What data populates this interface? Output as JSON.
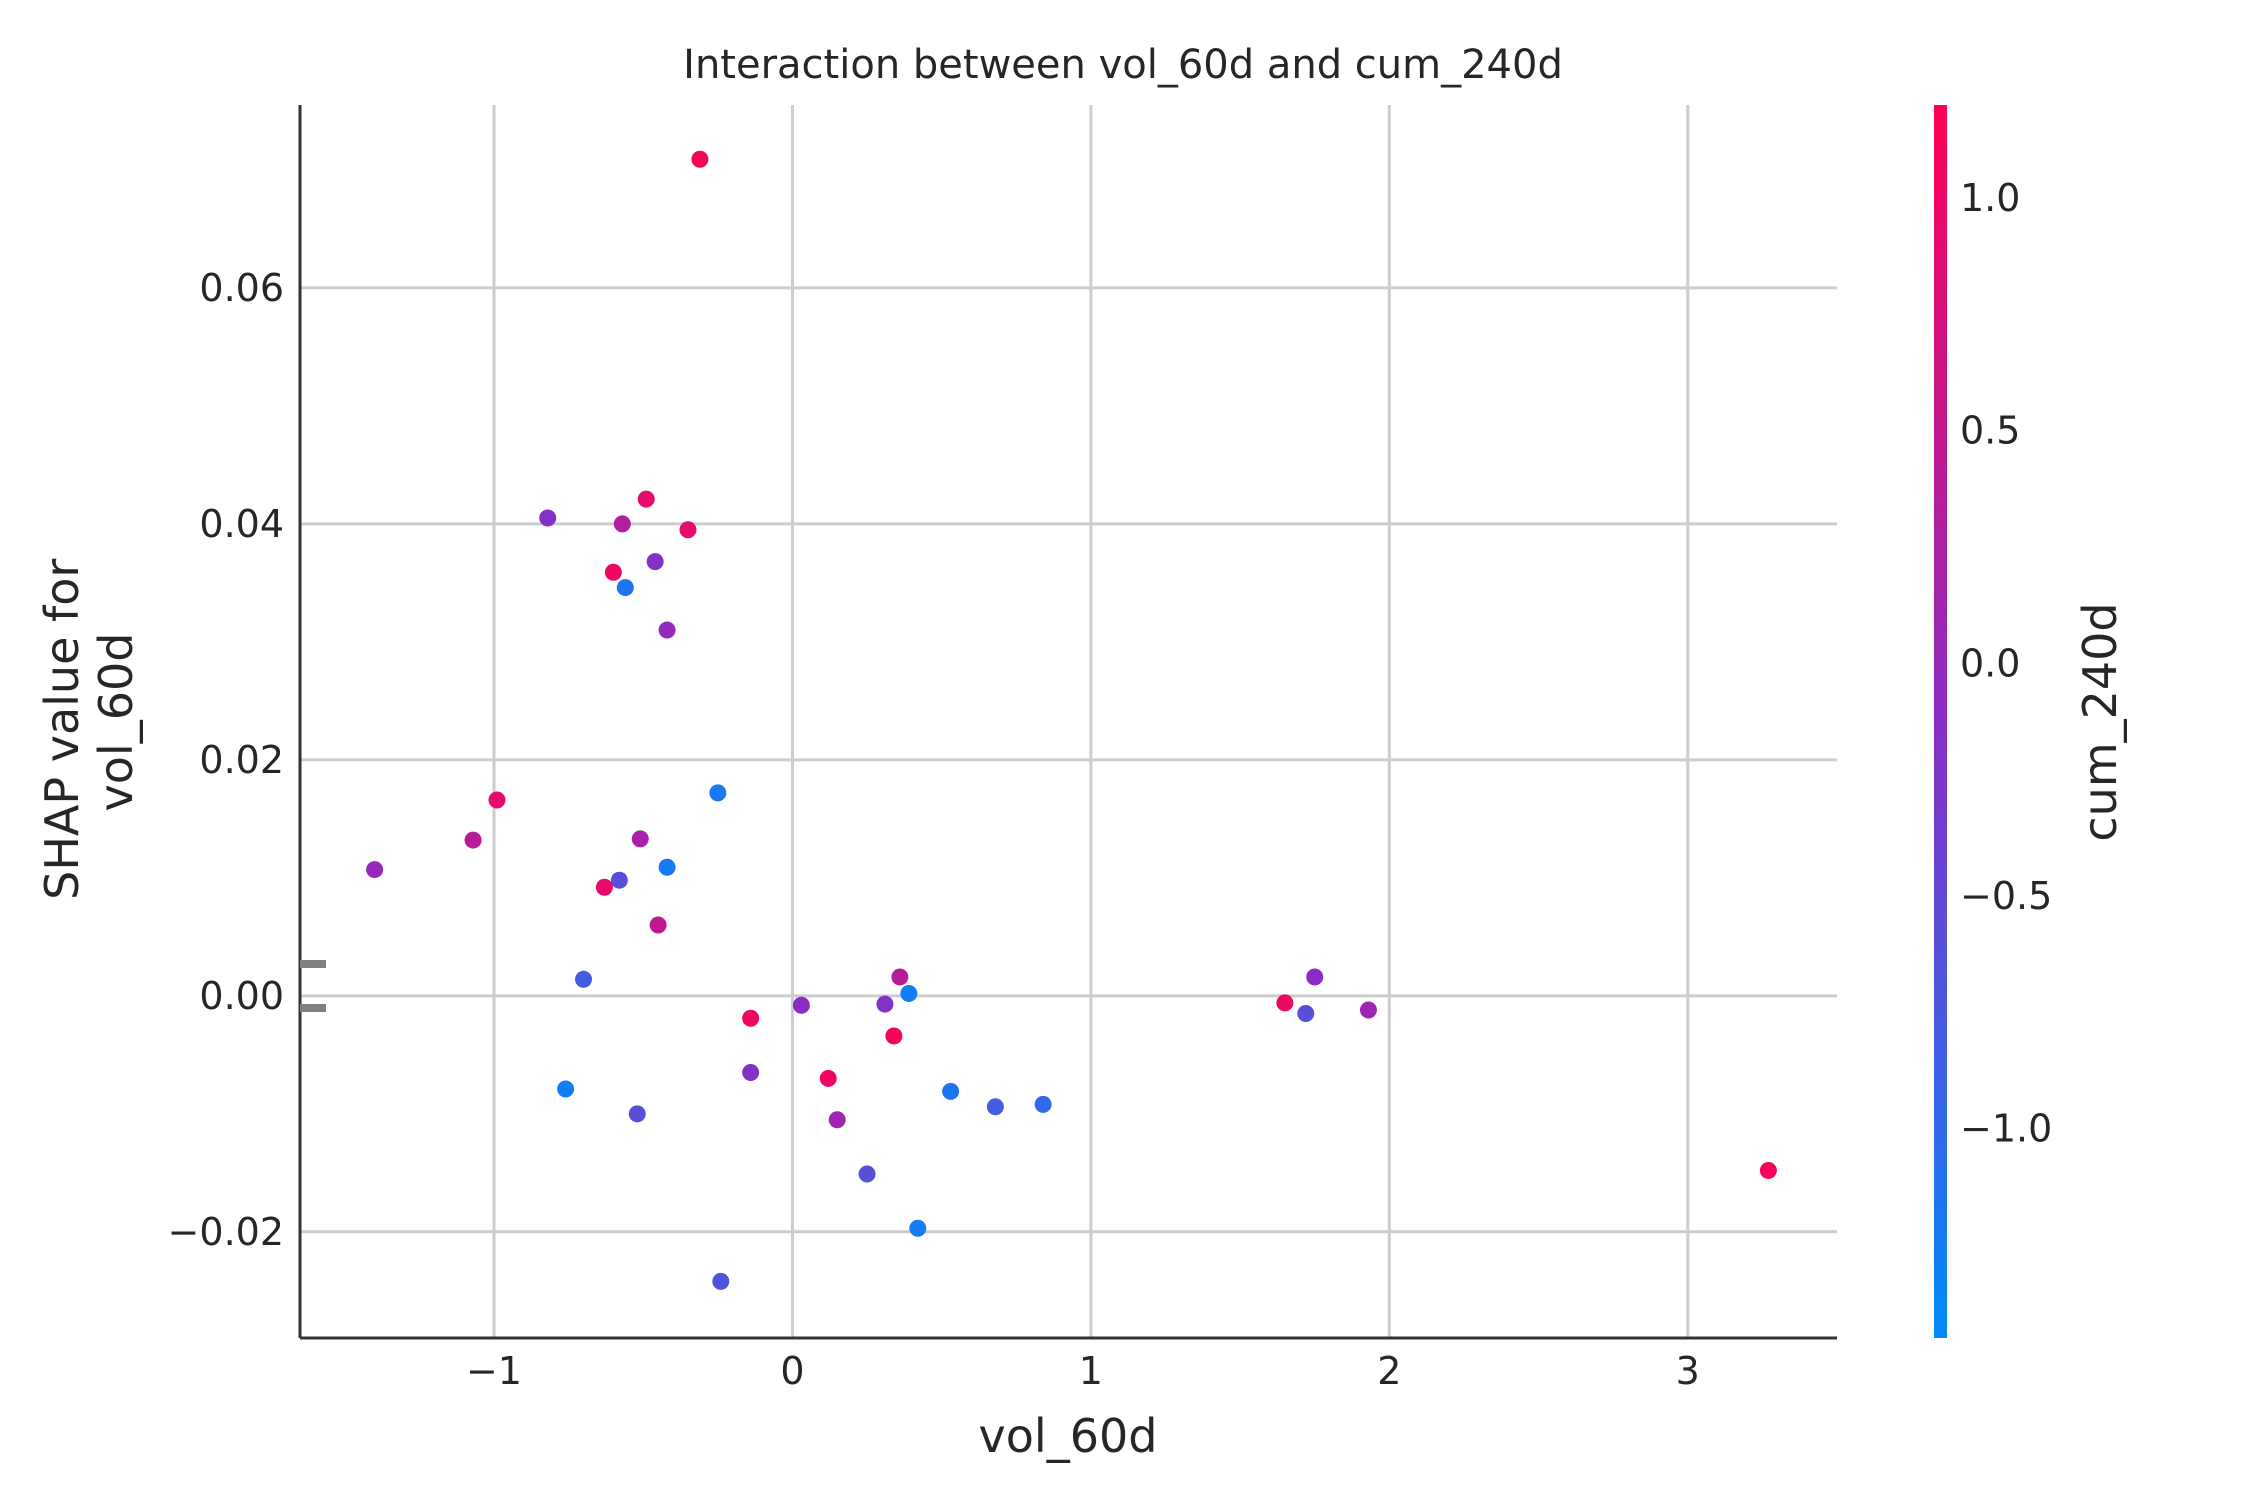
{
  "chart_data": {
    "type": "scatter",
    "title": "Interaction between vol_60d and cum_240d",
    "xlabel": "vol_60d",
    "ylabel_lines": [
      "SHAP value for",
      "vol_60d"
    ],
    "colorbar_label": "cum_240d",
    "xlim": [
      -1.65,
      3.5
    ],
    "ylim": [
      -0.029,
      0.0755
    ],
    "xticks": [
      -1,
      0,
      1,
      2,
      3
    ],
    "xtick_labels": [
      "−1",
      "0",
      "1",
      "2",
      "3"
    ],
    "yticks": [
      -0.02,
      0.0,
      0.02,
      0.04,
      0.06
    ],
    "ytick_labels": [
      "−0.02",
      "0.00",
      "0.02",
      "0.04",
      "0.06"
    ],
    "color_range": [
      -1.45,
      1.2
    ],
    "cticks": [
      -1.0,
      -0.5,
      0.0,
      0.5,
      1.0
    ],
    "ctick_labels": [
      "−1.0",
      "−0.5",
      "0.0",
      "0.5",
      "1.0"
    ],
    "colormap": {
      "low": "#008afb",
      "mid": "#8a2dc4",
      "high": "#ff0052"
    },
    "grid": true,
    "points": [
      {
        "x": -0.31,
        "y": 0.0709,
        "c": 1.1
      },
      {
        "x": -0.82,
        "y": 0.0405,
        "c": -0.2
      },
      {
        "x": -0.57,
        "y": 0.04,
        "c": 0.3
      },
      {
        "x": -0.49,
        "y": 0.0421,
        "c": 0.9
      },
      {
        "x": -0.35,
        "y": 0.0395,
        "c": 0.9
      },
      {
        "x": -0.6,
        "y": 0.0359,
        "c": 1.0
      },
      {
        "x": -0.46,
        "y": 0.0368,
        "c": -0.2
      },
      {
        "x": -0.56,
        "y": 0.0346,
        "c": -1.15
      },
      {
        "x": -0.42,
        "y": 0.031,
        "c": 0.0
      },
      {
        "x": -0.25,
        "y": 0.0172,
        "c": -1.2
      },
      {
        "x": -0.99,
        "y": 0.0166,
        "c": 0.9
      },
      {
        "x": -1.07,
        "y": 0.0132,
        "c": 0.4
      },
      {
        "x": -0.51,
        "y": 0.0133,
        "c": 0.2
      },
      {
        "x": -1.4,
        "y": 0.0107,
        "c": 0.0
      },
      {
        "x": -0.42,
        "y": 0.0109,
        "c": -1.2
      },
      {
        "x": -0.58,
        "y": 0.0098,
        "c": -0.6
      },
      {
        "x": -0.63,
        "y": 0.0092,
        "c": 0.9
      },
      {
        "x": -0.45,
        "y": 0.006,
        "c": 0.5
      },
      {
        "x": -0.7,
        "y": 0.0014,
        "c": -0.8
      },
      {
        "x": 0.36,
        "y": 0.0016,
        "c": 0.4
      },
      {
        "x": 0.39,
        "y": 0.0002,
        "c": -1.3
      },
      {
        "x": 0.03,
        "y": -0.0008,
        "c": -0.1
      },
      {
        "x": 0.31,
        "y": -0.0007,
        "c": -0.2
      },
      {
        "x": -0.14,
        "y": -0.0019,
        "c": 1.0
      },
      {
        "x": 0.34,
        "y": -0.0034,
        "c": 1.1
      },
      {
        "x": -0.14,
        "y": -0.0065,
        "c": -0.2
      },
      {
        "x": 0.12,
        "y": -0.007,
        "c": 1.0
      },
      {
        "x": -0.76,
        "y": -0.0079,
        "c": -1.3
      },
      {
        "x": 0.53,
        "y": -0.0081,
        "c": -1.15
      },
      {
        "x": 0.68,
        "y": -0.0094,
        "c": -0.8
      },
      {
        "x": 0.84,
        "y": -0.0092,
        "c": -1.0
      },
      {
        "x": -0.52,
        "y": -0.01,
        "c": -0.6
      },
      {
        "x": 0.15,
        "y": -0.0105,
        "c": 0.1
      },
      {
        "x": 0.25,
        "y": -0.0151,
        "c": -0.6
      },
      {
        "x": 0.42,
        "y": -0.0197,
        "c": -1.25
      },
      {
        "x": -0.24,
        "y": -0.0242,
        "c": -0.7
      },
      {
        "x": 1.65,
        "y": -0.0006,
        "c": 1.0
      },
      {
        "x": 1.75,
        "y": 0.0016,
        "c": -0.1
      },
      {
        "x": 1.72,
        "y": -0.0015,
        "c": -0.6
      },
      {
        "x": 1.93,
        "y": -0.0012,
        "c": 0.1
      },
      {
        "x": 3.27,
        "y": -0.0148,
        "c": 1.1
      }
    ]
  }
}
